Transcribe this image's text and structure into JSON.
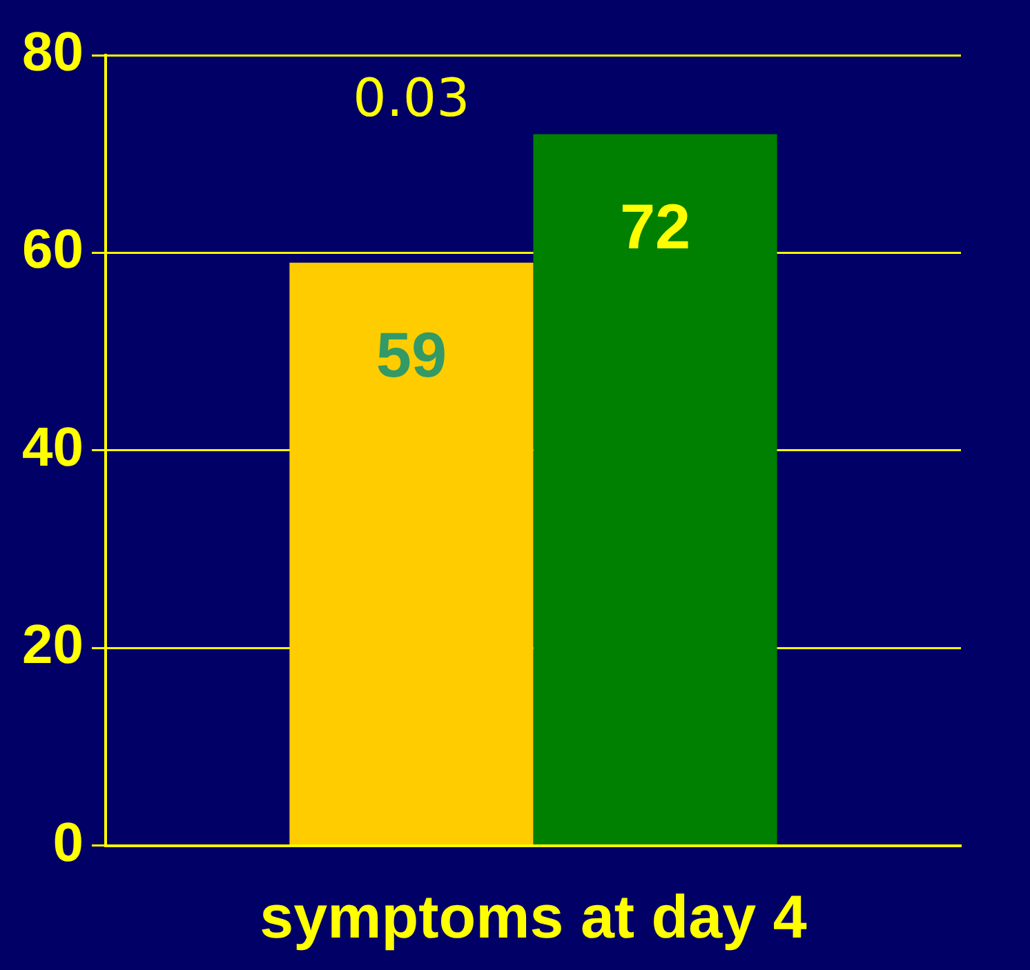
{
  "chart_data": {
    "type": "bar",
    "xlabel": "symptoms at day 4",
    "categories": [
      null
    ],
    "series": [
      {
        "color": "#ffcc00",
        "values": [
          59
        ]
      },
      {
        "color": "#008000",
        "values": [
          72
        ]
      }
    ],
    "ylim": [
      0,
      80
    ],
    "yticks": [
      0,
      20,
      40,
      60,
      80
    ],
    "grid": "y",
    "data_labels": true,
    "legend": false,
    "annotations": [
      "0.03"
    ]
  }
}
